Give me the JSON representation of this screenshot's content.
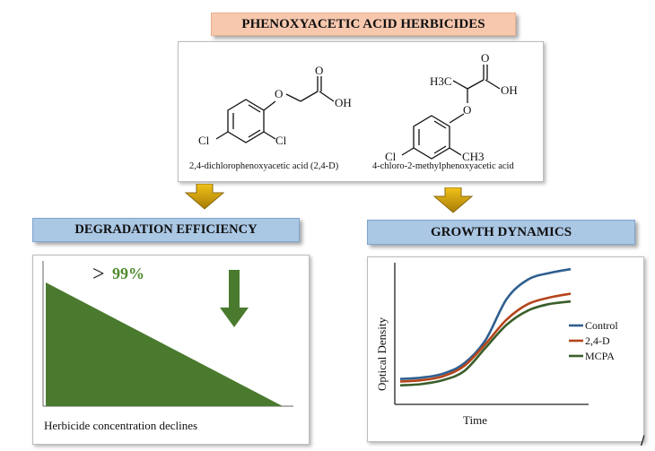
{
  "title": "PHENOXYACETIC ACID HERBICIDES",
  "molecules": {
    "left": {
      "caption": "2,4-dichlorophenoxyacetic acid (2,4-D)",
      "atoms": {
        "o_ether": "O",
        "o_carbonyl": "O",
        "oh": "OH",
        "cl1": "Cl",
        "cl2": "Cl"
      }
    },
    "right": {
      "caption": "4-chloro-2-methylphenoxyacetic acid",
      "atoms": {
        "h3c": "H3C",
        "o_carbonyl": "O",
        "oh": "OH",
        "o_ether": "O",
        "cl": "Cl",
        "ch3": "CH3"
      }
    }
  },
  "sections": {
    "degradation": {
      "title": "DEGRADATION EFFICIENCY",
      "percent_label": "99%",
      "compare_symbol": ">",
      "caption": "Herbicide concentration declines",
      "colors": {
        "fill": "#4a7a2e",
        "arrow": "#4a7a2e",
        "text": "#4e8a2e"
      }
    },
    "growth": {
      "title": "GROWTH DYNAMICS",
      "chart_data": {
        "type": "line",
        "xlabel": "Time",
        "ylabel": "Optical Density",
        "series": [
          {
            "name": "Control",
            "color": "#2f5f8f",
            "values": [
              0.1,
              0.11,
              0.14,
              0.22,
              0.4,
              0.72,
              0.87,
              0.92,
              0.95
            ]
          },
          {
            "name": "2,4-D",
            "color": "#b5451b",
            "values": [
              0.08,
              0.09,
              0.12,
              0.2,
              0.37,
              0.56,
              0.68,
              0.73,
              0.76
            ]
          },
          {
            "name": "MCPA",
            "color": "#3a5e2a",
            "values": [
              0.05,
              0.06,
              0.09,
              0.16,
              0.34,
              0.52,
              0.63,
              0.68,
              0.7
            ]
          }
        ],
        "ylim": [
          0,
          1
        ],
        "grid": false,
        "legend": "right"
      }
    }
  },
  "footer_mark": "/"
}
